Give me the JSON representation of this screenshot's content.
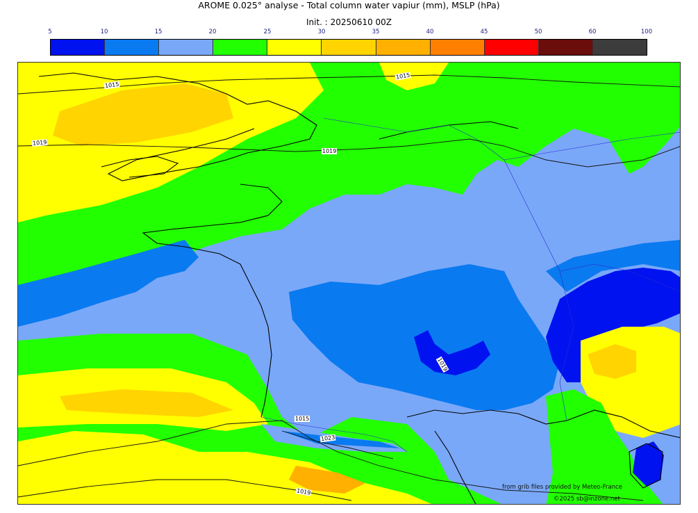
{
  "title": "AROME 0.025° analyse - Total column water vapiur (mm), MSLP (hPa)",
  "init": "Init. : 20250610 00Z",
  "colorbar": {
    "ticks": [
      "5",
      "10",
      "15",
      "20",
      "25",
      "30",
      "35",
      "40",
      "45",
      "50",
      "60",
      "100"
    ],
    "colors": [
      "#0012f0",
      "#0a7af0",
      "#7aa8f8",
      "#22ff00",
      "#ffff00",
      "#ffd400",
      "#ffb000",
      "#ff8000",
      "#ff0000",
      "#6b0d0a",
      "#3c3c3c"
    ]
  },
  "isobars": {
    "labels": [
      "1015",
      "1015",
      "1019",
      "1019",
      "1015",
      "1023",
      "1019",
      "1019"
    ]
  },
  "credits": {
    "source": "from grib files provided by Meteo-France",
    "copyright": "©2025 sb@inzone.net"
  }
}
